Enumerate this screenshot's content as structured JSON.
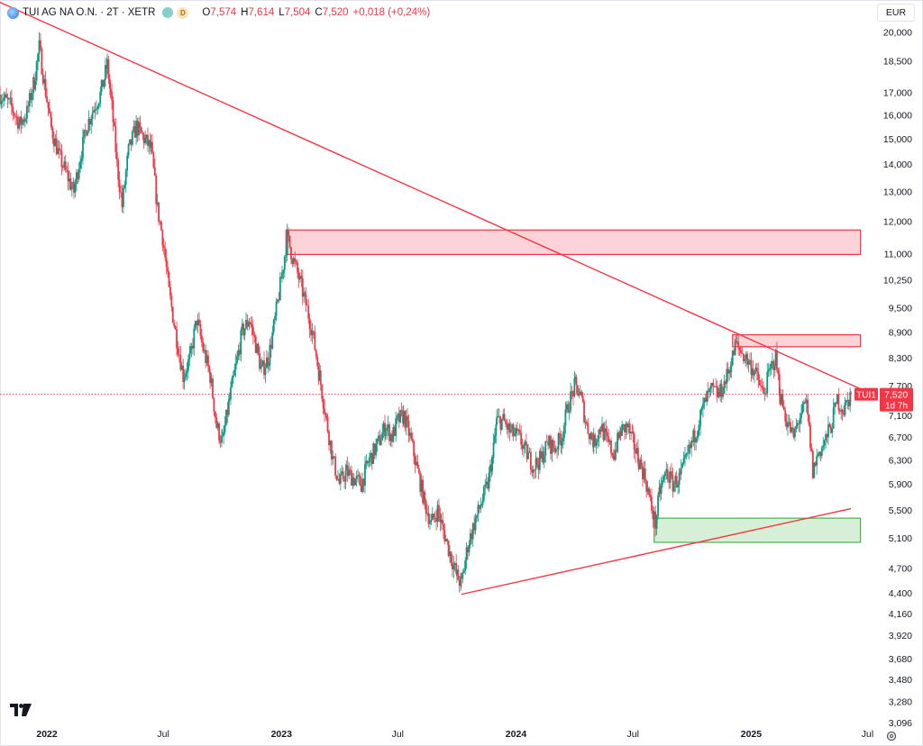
{
  "header": {
    "symbol": "TUI AG NA O.N. · 2T · XETR",
    "badge": "D",
    "open_label": "O",
    "open": "7,574",
    "high_label": "H",
    "high": "7,614",
    "low_label": "L",
    "low": "7,504",
    "close_label": "C",
    "close": "7,520",
    "change": "+0,018 (+0,24%)"
  },
  "currency": "EUR",
  "price_tag": {
    "ticker": "TUI1",
    "price": "7,520",
    "countdown": "1d 7h"
  },
  "colors": {
    "up": "#089981",
    "down": "#f23645",
    "trendline": "#f23645",
    "zone_red_fill": "#fcd4d8",
    "zone_green_fill": "#d6f0d8",
    "zone_green_border": "#4caf50"
  },
  "chart_data": {
    "type": "candlestick",
    "y_scale": "log",
    "ylim": [
      2.95,
      21.5
    ],
    "xlim": [
      "2021-10-20",
      "2025-07-20"
    ],
    "y_ticks": [
      "20,000",
      "18,500",
      "17,000",
      "16,000",
      "15,000",
      "14,000",
      "13,000",
      "12,000",
      "11,000",
      "10,250",
      "9,500",
      "8,900",
      "8,300",
      "7,700",
      "7,100",
      "6,700",
      "6,300",
      "5,900",
      "5,500",
      "5,100",
      "4,700",
      "4,400",
      "4,160",
      "3,920",
      "3,680",
      "3,480",
      "3,280",
      "3,096"
    ],
    "x_ticks": [
      {
        "label": "2022",
        "date": "2022-01-01",
        "bold": true
      },
      {
        "label": "Jul",
        "date": "2022-07-01",
        "bold": false
      },
      {
        "label": "2023",
        "date": "2023-01-01",
        "bold": true
      },
      {
        "label": "Jul",
        "date": "2023-07-01",
        "bold": false
      },
      {
        "label": "2024",
        "date": "2024-01-01",
        "bold": true
      },
      {
        "label": "Jul",
        "date": "2024-07-01",
        "bold": false
      },
      {
        "label": "2025",
        "date": "2025-01-01",
        "bold": true
      },
      {
        "label": "Jul",
        "date": "2025-07-01",
        "bold": false
      }
    ],
    "price_path": [
      [
        "2021-10-20",
        16.9
      ],
      [
        "2021-11-05",
        16.4
      ],
      [
        "2021-11-20",
        15.6
      ],
      [
        "2021-12-01",
        16.1
      ],
      [
        "2021-12-12",
        17.5
      ],
      [
        "2021-12-20",
        19.2
      ],
      [
        "2021-12-28",
        17.4
      ],
      [
        "2022-01-08",
        15.4
      ],
      [
        "2022-01-20",
        14.3
      ],
      [
        "2022-02-01",
        13.6
      ],
      [
        "2022-02-12",
        13.0
      ],
      [
        "2022-02-22",
        14.3
      ],
      [
        "2022-03-05",
        15.6
      ],
      [
        "2022-03-15",
        16.3
      ],
      [
        "2022-03-25",
        16.9
      ],
      [
        "2022-04-05",
        18.3
      ],
      [
        "2022-04-10",
        16.9
      ],
      [
        "2022-04-20",
        14.0
      ],
      [
        "2022-04-28",
        12.5
      ],
      [
        "2022-05-08",
        14.5
      ],
      [
        "2022-05-20",
        15.5
      ],
      [
        "2022-06-01",
        15.0
      ],
      [
        "2022-06-12",
        14.6
      ],
      [
        "2022-06-22",
        12.4
      ],
      [
        "2022-06-30",
        11.5
      ],
      [
        "2022-07-10",
        9.9
      ],
      [
        "2022-07-20",
        8.9
      ],
      [
        "2022-08-01",
        7.9
      ],
      [
        "2022-08-12",
        8.3
      ],
      [
        "2022-08-22",
        9.2
      ],
      [
        "2022-09-01",
        8.5
      ],
      [
        "2022-09-12",
        7.9
      ],
      [
        "2022-09-22",
        6.9
      ],
      [
        "2022-10-01",
        6.6
      ],
      [
        "2022-10-12",
        7.4
      ],
      [
        "2022-10-22",
        8.1
      ],
      [
        "2022-11-01",
        8.9
      ],
      [
        "2022-11-12",
        9.2
      ],
      [
        "2022-11-22",
        8.6
      ],
      [
        "2022-12-01",
        8.0
      ],
      [
        "2022-12-12",
        8.3
      ],
      [
        "2022-12-22",
        9.2
      ],
      [
        "2023-01-02",
        10.4
      ],
      [
        "2023-01-10",
        11.5
      ],
      [
        "2023-01-18",
        10.9
      ],
      [
        "2023-01-28",
        10.3
      ],
      [
        "2023-02-08",
        9.6
      ],
      [
        "2023-02-18",
        8.9
      ],
      [
        "2023-03-01",
        7.9
      ],
      [
        "2023-03-12",
        7.0
      ],
      [
        "2023-03-22",
        6.3
      ],
      [
        "2023-04-01",
        5.9
      ],
      [
        "2023-04-12",
        6.1
      ],
      [
        "2023-04-22",
        6.0
      ],
      [
        "2023-05-05",
        5.9
      ],
      [
        "2023-05-18",
        6.3
      ],
      [
        "2023-06-01",
        6.6
      ],
      [
        "2023-06-12",
        6.9
      ],
      [
        "2023-06-22",
        6.7
      ],
      [
        "2023-07-01",
        7.0
      ],
      [
        "2023-07-10",
        7.1
      ],
      [
        "2023-07-20",
        6.7
      ],
      [
        "2023-08-01",
        6.1
      ],
      [
        "2023-08-12",
        5.6
      ],
      [
        "2023-08-22",
        5.3
      ],
      [
        "2023-09-01",
        5.5
      ],
      [
        "2023-09-10",
        5.2
      ],
      [
        "2023-09-20",
        4.9
      ],
      [
        "2023-10-01",
        4.6
      ],
      [
        "2023-10-08",
        4.5
      ],
      [
        "2023-10-18",
        5.0
      ],
      [
        "2023-10-28",
        5.3
      ],
      [
        "2023-11-08",
        5.6
      ],
      [
        "2023-11-18",
        5.9
      ],
      [
        "2023-11-25",
        6.3
      ],
      [
        "2023-12-02",
        7.0
      ],
      [
        "2023-12-12",
        7.0
      ],
      [
        "2023-12-22",
        6.8
      ],
      [
        "2024-01-05",
        6.7
      ],
      [
        "2024-01-18",
        6.4
      ],
      [
        "2024-01-28",
        6.2
      ],
      [
        "2024-02-08",
        6.3
      ],
      [
        "2024-02-20",
        6.6
      ],
      [
        "2024-03-01",
        6.5
      ],
      [
        "2024-03-12",
        6.7
      ],
      [
        "2024-03-22",
        7.3
      ],
      [
        "2024-04-02",
        7.7
      ],
      [
        "2024-04-10",
        7.5
      ],
      [
        "2024-04-20",
        6.9
      ],
      [
        "2024-05-01",
        6.6
      ],
      [
        "2024-05-12",
        6.9
      ],
      [
        "2024-05-22",
        6.6
      ],
      [
        "2024-06-01",
        6.4
      ],
      [
        "2024-06-12",
        6.8
      ],
      [
        "2024-06-22",
        6.9
      ],
      [
        "2024-07-01",
        6.6
      ],
      [
        "2024-07-10",
        6.3
      ],
      [
        "2024-07-20",
        6.0
      ],
      [
        "2024-07-28",
        5.6
      ],
      [
        "2024-08-05",
        5.3
      ],
      [
        "2024-08-12",
        5.8
      ],
      [
        "2024-08-22",
        6.1
      ],
      [
        "2024-09-01",
        5.9
      ],
      [
        "2024-09-12",
        6.0
      ],
      [
        "2024-09-22",
        6.3
      ],
      [
        "2024-10-01",
        6.6
      ],
      [
        "2024-10-12",
        7.0
      ],
      [
        "2024-10-22",
        7.4
      ],
      [
        "2024-11-01",
        7.6
      ],
      [
        "2024-11-12",
        7.5
      ],
      [
        "2024-11-22",
        7.8
      ],
      [
        "2024-12-01",
        8.2
      ],
      [
        "2024-12-08",
        8.6
      ],
      [
        "2024-12-18",
        8.4
      ],
      [
        "2025-01-02",
        8.1
      ],
      [
        "2025-01-12",
        7.8
      ],
      [
        "2025-01-20",
        7.5
      ],
      [
        "2025-01-30",
        8.0
      ],
      [
        "2025-02-08",
        8.3
      ],
      [
        "2025-02-15",
        7.5
      ],
      [
        "2025-02-25",
        7.0
      ],
      [
        "2025-03-08",
        6.7
      ],
      [
        "2025-03-18",
        7.1
      ],
      [
        "2025-03-28",
        7.3
      ],
      [
        "2025-04-07",
        6.1
      ],
      [
        "2025-04-15",
        6.4
      ],
      [
        "2025-04-25",
        6.6
      ],
      [
        "2025-05-05",
        6.9
      ],
      [
        "2025-05-15",
        7.4
      ],
      [
        "2025-05-25",
        7.2
      ],
      [
        "2025-06-05",
        7.52
      ]
    ],
    "trendlines": [
      {
        "from": [
          "2021-10-01",
          22.0
        ],
        "to": [
          "2025-06-25",
          7.6
        ]
      },
      {
        "from": [
          "2023-10-08",
          4.38
        ],
        "to": [
          "2025-06-05",
          5.52
        ]
      }
    ],
    "zones": [
      {
        "kind": "resistance",
        "from": [
          "2023-01-08",
          11.72
        ],
        "to": [
          "2025-06-20",
          10.97
        ]
      },
      {
        "kind": "resistance",
        "from": [
          "2024-12-03",
          8.83
        ],
        "to": [
          "2025-06-20",
          8.55
        ]
      },
      {
        "kind": "support",
        "from": [
          "2024-08-03",
          5.38
        ],
        "to": [
          "2025-06-20",
          5.04
        ]
      }
    ],
    "last_price": 7.52
  }
}
